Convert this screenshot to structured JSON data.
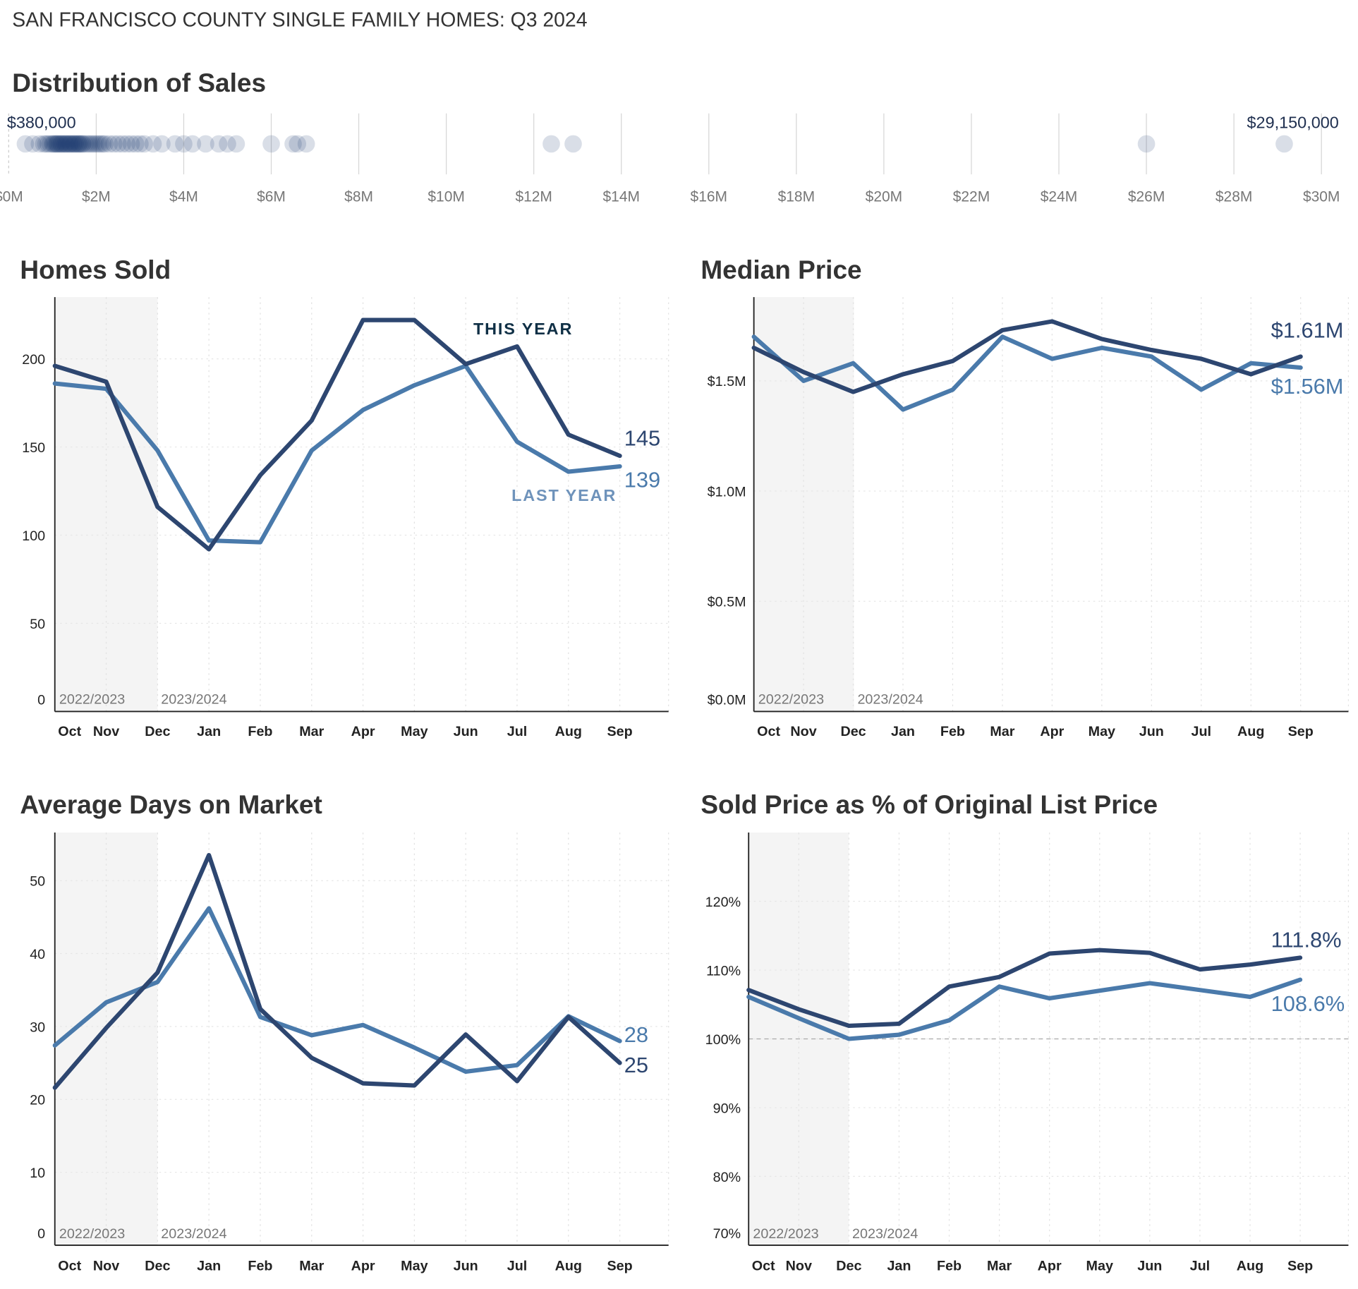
{
  "header": "SAN FRANCISCO COUNTY SINGLE FAMILY HOMES: Q3 2024",
  "distribution": {
    "title": "Distribution of Sales",
    "min_label": "$380,000",
    "max_label": "$29,150,000",
    "ticks": [
      "$0M",
      "$2M",
      "$4M",
      "$6M",
      "$8M",
      "$10M",
      "$12M",
      "$14M",
      "$16M",
      "$18M",
      "$20M",
      "$22M",
      "$24M",
      "$26M",
      "$28M",
      "$30M"
    ],
    "xlim_millions": [
      0,
      30
    ],
    "sales_millions": [
      0.38,
      0.55,
      0.7,
      0.8,
      0.85,
      0.9,
      0.95,
      1.0,
      1.02,
      1.05,
      1.08,
      1.1,
      1.12,
      1.15,
      1.18,
      1.2,
      1.22,
      1.25,
      1.28,
      1.3,
      1.32,
      1.35,
      1.38,
      1.4,
      1.42,
      1.45,
      1.48,
      1.5,
      1.52,
      1.55,
      1.58,
      1.6,
      1.62,
      1.65,
      1.68,
      1.7,
      1.75,
      1.8,
      1.85,
      1.9,
      1.95,
      2.0,
      2.05,
      2.1,
      2.15,
      2.2,
      2.3,
      2.4,
      2.5,
      2.6,
      2.7,
      2.8,
      2.9,
      3.0,
      3.1,
      3.3,
      3.5,
      3.8,
      4.0,
      4.2,
      4.5,
      4.8,
      5.0,
      5.2,
      6.0,
      6.5,
      6.6,
      6.8,
      12.4,
      12.9,
      26.0,
      29.15
    ],
    "dot_color": "#1f3d73"
  },
  "colors": {
    "this_year": "#2d4670",
    "last_year": "#4a7aab",
    "shade": "#f4f4f4"
  },
  "months": [
    "Oct",
    "Nov",
    "Dec",
    "Jan",
    "Feb",
    "Mar",
    "Apr",
    "May",
    "Jun",
    "Jul",
    "Aug",
    "Sep"
  ],
  "periods": [
    "2022/2023",
    "2023/2024"
  ],
  "chart_data": [
    {
      "type": "line",
      "title": "Homes Sold",
      "y_ticks": [
        "0",
        "50",
        "100",
        "150",
        "200"
      ],
      "y_tick_values": [
        0,
        50,
        100,
        150,
        200
      ],
      "ylim": [
        0,
        235
      ],
      "series": [
        {
          "name": "THIS YEAR",
          "values": [
            196,
            187,
            116,
            92,
            134,
            165,
            222,
            222,
            197,
            207,
            157,
            145
          ],
          "end_label": "145"
        },
        {
          "name": "LAST YEAR",
          "values": [
            186,
            183,
            148,
            97,
            96,
            148,
            171,
            185,
            196,
            153,
            136,
            139
          ],
          "end_label": "139"
        }
      ]
    },
    {
      "type": "line",
      "title": "Median Price",
      "y_ticks": [
        "$0.0M",
        "$0.5M",
        "$1.0M",
        "$1.5M"
      ],
      "y_tick_values": [
        0,
        0.5,
        1.0,
        1.5
      ],
      "ylim": [
        0,
        1.88
      ],
      "series": [
        {
          "values": [
            1.65,
            1.54,
            1.45,
            1.53,
            1.59,
            1.73,
            1.77,
            1.69,
            1.64,
            1.6,
            1.53,
            1.61
          ],
          "end_label": "$1.61M"
        },
        {
          "values": [
            1.7,
            1.5,
            1.58,
            1.37,
            1.46,
            1.7,
            1.6,
            1.65,
            1.61,
            1.46,
            1.58,
            1.56
          ],
          "end_label": "$1.56M"
        }
      ]
    },
    {
      "type": "line",
      "title": "Average Days on Market",
      "y_ticks": [
        "0",
        "10",
        "20",
        "30",
        "40",
        "50"
      ],
      "y_tick_values": [
        0,
        10,
        20,
        30,
        40,
        50
      ],
      "ylim": [
        0,
        56.6
      ],
      "series": [
        {
          "values": [
            21.6,
            29.8,
            37.4,
            53.5,
            32.4,
            25.7,
            22.2,
            21.9,
            28.9,
            22.5,
            31.3,
            25
          ],
          "end_label": "25"
        },
        {
          "values": [
            27.4,
            33.3,
            36.1,
            46.2,
            31.3,
            28.8,
            30.2,
            27.1,
            23.8,
            24.7,
            31.4,
            28
          ],
          "end_label": "28"
        }
      ]
    },
    {
      "type": "line",
      "title": "Sold Price as % of Original List Price",
      "y_ticks": [
        "70%",
        "80%",
        "90%",
        "100%",
        "110%",
        "120%"
      ],
      "y_tick_values": [
        70,
        80,
        90,
        100,
        110,
        120
      ],
      "ylim": [
        70,
        130
      ],
      "reference_line": 100,
      "series": [
        {
          "values": [
            107.1,
            104.3,
            101.9,
            102.2,
            107.6,
            109.0,
            112.4,
            112.9,
            112.5,
            110.1,
            110.8,
            111.8
          ],
          "end_label": "111.8%"
        },
        {
          "values": [
            106.1,
            103.0,
            100.0,
            100.6,
            102.7,
            107.6,
            105.9,
            107.0,
            108.1,
            107.1,
            106.1,
            108.6
          ],
          "end_label": "108.6%"
        }
      ]
    }
  ]
}
